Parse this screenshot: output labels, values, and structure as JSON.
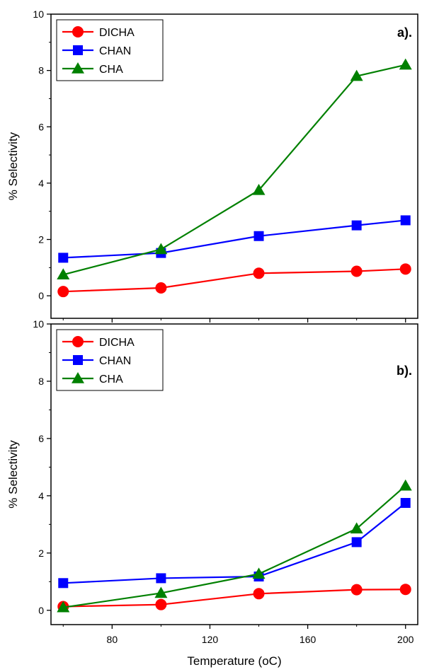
{
  "chart_data": [
    {
      "type": "line",
      "panel_label": "a).",
      "x": [
        60,
        100,
        140,
        180,
        200
      ],
      "series": [
        {
          "name": "DICHA",
          "color": "#ff0000",
          "marker": "circle",
          "values": [
            0.15,
            0.28,
            0.8,
            0.87,
            0.95
          ]
        },
        {
          "name": "CHAN",
          "color": "#0000ff",
          "marker": "square",
          "values": [
            1.35,
            1.52,
            2.12,
            2.5,
            2.68
          ]
        },
        {
          "name": "CHA",
          "color": "#008000",
          "marker": "triangle",
          "values": [
            0.75,
            1.65,
            3.75,
            7.8,
            8.2
          ]
        }
      ],
      "ylabel": "% Selectivity",
      "xlim": [
        55,
        205
      ],
      "ylim": [
        -0.8,
        10
      ],
      "yticks": [
        0,
        2,
        4,
        6,
        8,
        10
      ],
      "xticks": [
        80,
        120,
        160,
        200
      ],
      "show_xtick_labels": false,
      "grid": false,
      "legend_position": "top-left"
    },
    {
      "type": "line",
      "panel_label": "b).",
      "x": [
        60,
        100,
        140,
        180,
        200
      ],
      "series": [
        {
          "name": "DICHA",
          "color": "#ff0000",
          "marker": "circle",
          "values": [
            0.13,
            0.2,
            0.58,
            0.72,
            0.73
          ]
        },
        {
          "name": "CHAN",
          "color": "#0000ff",
          "marker": "square",
          "values": [
            0.95,
            1.12,
            1.18,
            2.38,
            3.75
          ]
        },
        {
          "name": "CHA",
          "color": "#008000",
          "marker": "triangle",
          "values": [
            0.1,
            0.6,
            1.27,
            2.85,
            4.35
          ]
        }
      ],
      "xlabel": "Temperature (oC)",
      "ylabel": "% Selectivity",
      "xlim": [
        55,
        205
      ],
      "ylim": [
        -0.5,
        10
      ],
      "yticks": [
        0,
        2,
        4,
        6,
        8,
        10
      ],
      "xticks": [
        80,
        120,
        160,
        200
      ],
      "show_xtick_labels": true,
      "grid": false,
      "legend_position": "top-left"
    }
  ]
}
